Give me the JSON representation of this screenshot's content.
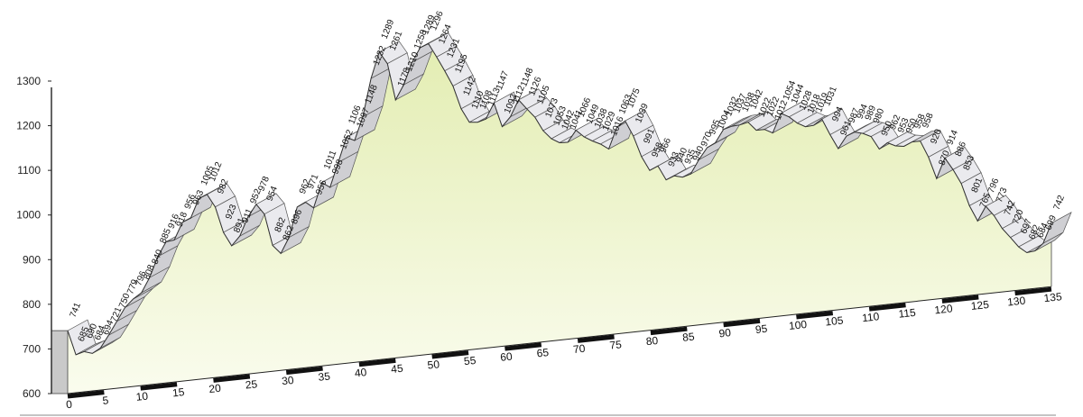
{
  "chart_data": {
    "type": "area",
    "title": "",
    "xlabel": "",
    "ylabel": "",
    "xlim": [
      0,
      135
    ],
    "ylim": [
      600,
      1300
    ],
    "y_ticks": [
      "600",
      "700",
      "800",
      "900",
      "1000",
      "1100",
      "1200",
      "1300"
    ],
    "x_ticks": [
      "0",
      "5",
      "10",
      "15",
      "20",
      "25",
      "30",
      "35",
      "40",
      "45",
      "50",
      "55",
      "60",
      "65",
      "70",
      "75",
      "80",
      "85",
      "90",
      "95",
      "100",
      "105",
      "110",
      "115",
      "120",
      "125",
      "130",
      "135"
    ],
    "profile": [
      [
        0,
        741
      ],
      [
        1,
        685
      ],
      [
        2,
        690
      ],
      [
        3,
        684
      ],
      [
        4,
        694
      ],
      [
        5,
        721
      ],
      [
        6,
        750
      ],
      [
        7,
        779
      ],
      [
        8,
        796
      ],
      [
        9,
        808
      ],
      [
        10,
        840
      ],
      [
        11,
        885
      ],
      [
        12,
        916
      ],
      [
        13,
        918
      ],
      [
        14,
        956
      ],
      [
        15,
        963
      ],
      [
        16,
        1005
      ],
      [
        17,
        1012
      ],
      [
        18,
        982
      ],
      [
        19,
        923
      ],
      [
        20,
        891
      ],
      [
        21,
        911
      ],
      [
        22,
        952
      ],
      [
        23,
        978
      ],
      [
        24,
        954
      ],
      [
        25,
        882
      ],
      [
        26,
        862
      ],
      [
        27,
        896
      ],
      [
        28,
        962
      ],
      [
        29,
        971
      ],
      [
        30,
        956
      ],
      [
        31,
        1011
      ],
      [
        32,
        998
      ],
      [
        33,
        1052
      ],
      [
        34,
        1106
      ],
      [
        35,
        1097
      ],
      [
        36,
        1148
      ],
      [
        37,
        1232
      ],
      [
        38,
        1289
      ],
      [
        39,
        1261
      ],
      [
        40,
        1178
      ],
      [
        41,
        1210
      ],
      [
        42,
        1258
      ],
      [
        43,
        1289
      ],
      [
        44,
        1296
      ],
      [
        45,
        1264
      ],
      [
        46,
        1231
      ],
      [
        47,
        1195
      ],
      [
        48,
        1142
      ],
      [
        49,
        1110
      ],
      [
        50,
        1108
      ],
      [
        51,
        1113
      ],
      [
        52,
        1147
      ],
      [
        53,
        1092
      ],
      [
        54,
        1112
      ],
      [
        55,
        1148
      ],
      [
        56,
        1126
      ],
      [
        57,
        1105
      ],
      [
        58,
        1073
      ],
      [
        59,
        1053
      ],
      [
        60,
        1042
      ],
      [
        61,
        1041
      ],
      [
        62,
        1066
      ],
      [
        63,
        1049
      ],
      [
        64,
        1038
      ],
      [
        65,
        1029
      ],
      [
        66,
        1016
      ],
      [
        67,
        1063
      ],
      [
        68,
        1075
      ],
      [
        69,
        1039
      ],
      [
        70,
        991
      ],
      [
        71,
        958
      ],
      [
        72,
        966
      ],
      [
        73,
        933
      ],
      [
        74,
        940
      ],
      [
        75,
        935
      ],
      [
        76,
        940
      ],
      [
        77,
        970
      ],
      [
        78,
        995
      ],
      [
        79,
        1004
      ],
      [
        80,
        1032
      ],
      [
        81,
        1037
      ],
      [
        82,
        1038
      ],
      [
        83,
        1042
      ],
      [
        84,
        1022
      ],
      [
        85,
        1022
      ],
      [
        86,
        1012
      ],
      [
        87,
        1054
      ],
      [
        88,
        1044
      ],
      [
        89,
        1028
      ],
      [
        90,
        1018
      ],
      [
        91,
        1019
      ],
      [
        92,
        1031
      ],
      [
        93,
        994
      ],
      [
        94,
        961
      ],
      [
        95,
        987
      ],
      [
        96,
        994
      ],
      [
        97,
        989
      ],
      [
        98,
        980
      ],
      [
        99,
        950
      ],
      [
        100,
        962
      ],
      [
        101,
        953
      ],
      [
        102,
        950
      ],
      [
        103,
        958
      ],
      [
        104,
        958
      ],
      [
        105,
        920
      ],
      [
        106,
        870
      ],
      [
        107,
        914
      ],
      [
        108,
        886
      ],
      [
        109,
        853
      ],
      [
        110,
        801
      ],
      [
        111,
        765
      ],
      [
        112,
        796
      ],
      [
        113,
        773
      ],
      [
        114,
        742
      ],
      [
        115,
        720
      ],
      [
        116,
        697
      ],
      [
        117,
        682
      ],
      [
        118,
        684
      ],
      [
        119,
        699
      ],
      [
        120,
        742
      ]
    ]
  }
}
